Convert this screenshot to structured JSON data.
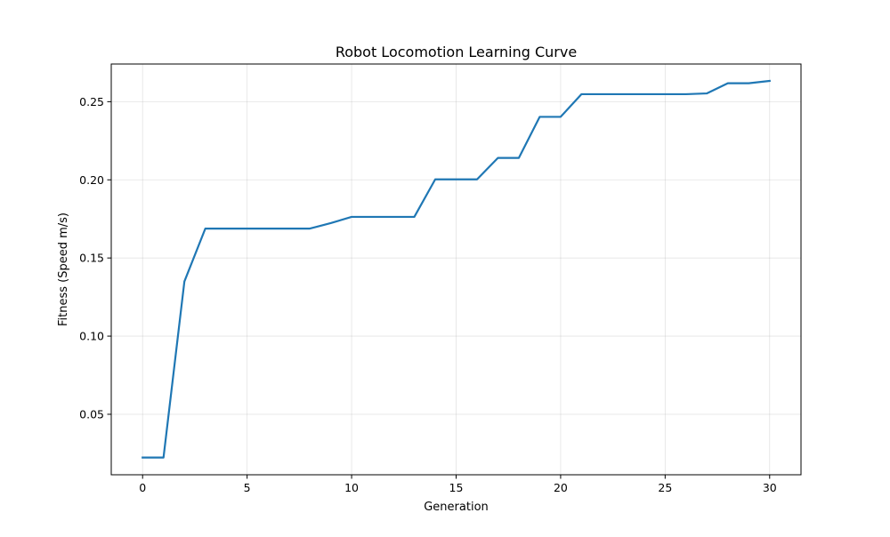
{
  "chart_data": {
    "type": "line",
    "title": "Robot Locomotion Learning Curve",
    "xlabel": "Generation",
    "ylabel": "Fitness (Speed m/s)",
    "xlim": [
      -1.5,
      31.5
    ],
    "ylim": [
      0.0113,
      0.2741
    ],
    "xticks": [
      0,
      5,
      10,
      15,
      20,
      25,
      30
    ],
    "xtick_labels": [
      "0",
      "5",
      "10",
      "15",
      "20",
      "25",
      "30"
    ],
    "yticks": [
      0.05,
      0.1,
      0.15,
      0.2,
      0.25
    ],
    "ytick_labels": [
      "0.05",
      "0.10",
      "0.15",
      "0.20",
      "0.25"
    ],
    "grid": true,
    "legend": "none",
    "series": [
      {
        "name": "Fitness",
        "color": "#1f77b4",
        "x": [
          0,
          1,
          2,
          3,
          4,
          5,
          6,
          7,
          8,
          9,
          10,
          11,
          12,
          13,
          14,
          15,
          16,
          17,
          18,
          19,
          20,
          21,
          22,
          23,
          24,
          25,
          26,
          27,
          28,
          29,
          30
        ],
        "values": [
          0.0223,
          0.0223,
          0.135,
          0.1688,
          0.1688,
          0.1688,
          0.1688,
          0.1688,
          0.1688,
          0.1723,
          0.1763,
          0.1763,
          0.1763,
          0.1763,
          0.2003,
          0.2003,
          0.2003,
          0.214,
          0.214,
          0.2403,
          0.2403,
          0.2548,
          0.2548,
          0.2548,
          0.2548,
          0.2548,
          0.2548,
          0.2553,
          0.2618,
          0.2618,
          0.2633
        ]
      }
    ]
  }
}
